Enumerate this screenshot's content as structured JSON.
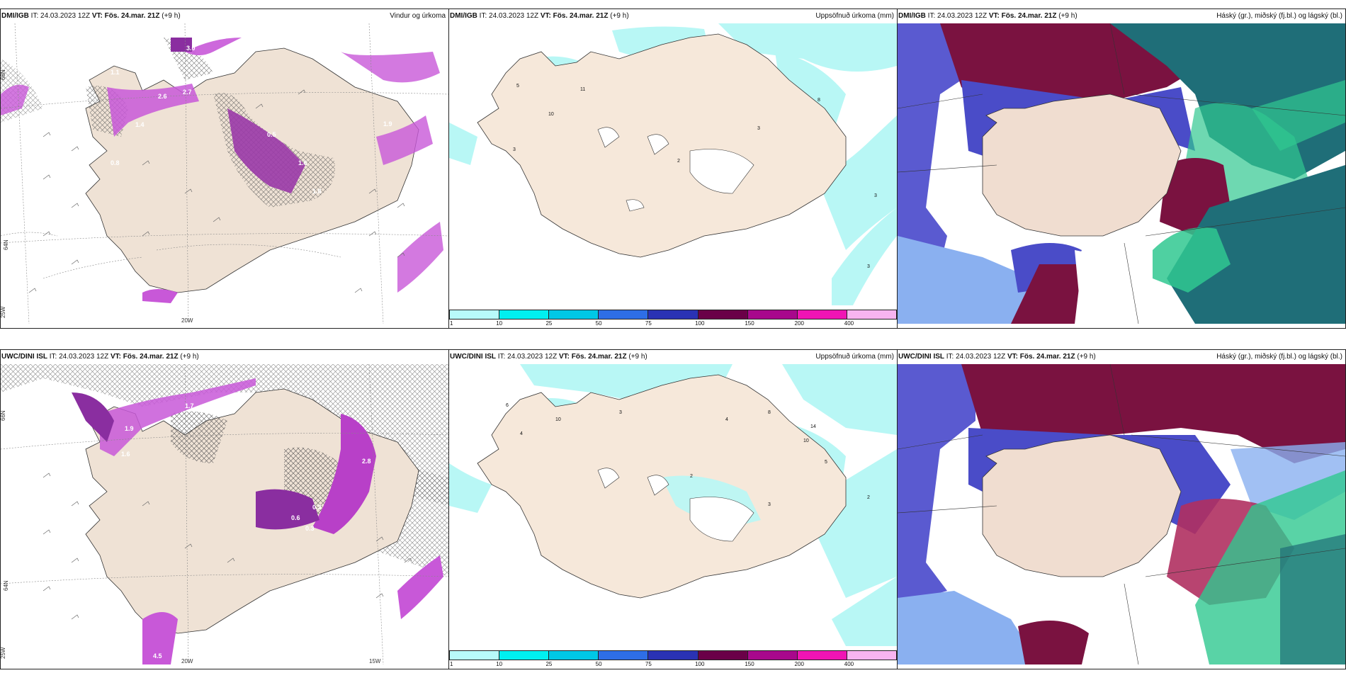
{
  "colors": {
    "land": "#f0e3d6",
    "precip_cyan": "#b8f7f5",
    "precip_magenta": "#c858d8",
    "cloud_high": "#7a1240",
    "cloud_mid": "#4a4cc8",
    "cloud_low": "#1f6e78",
    "cloud_low_green": "#30c890",
    "cloud_light_blue": "#8ab0f0"
  },
  "panels": [
    {
      "id": "p1",
      "model": "DMI/IGB",
      "it_label": "IT:",
      "it": "24.03.2023 12Z",
      "vt_label": "VT:",
      "vt": "Fös. 24.mar. 21Z",
      "lead": "(+9 h)",
      "title": "Vindur og úrkoma"
    },
    {
      "id": "p2",
      "model": "DMI/IGB",
      "it_label": "IT:",
      "it": "24.03.2023 12Z",
      "vt_label": "VT:",
      "vt": "Fös. 24.mar. 21Z",
      "lead": "(+9 h)",
      "title": "Uppsöfnuð úrkoma (mm)"
    },
    {
      "id": "p3",
      "model": "DMI/IGB",
      "it_label": "IT:",
      "it": "24.03.2023 12Z",
      "vt_label": "VT:",
      "vt": "Fös. 24.mar. 21Z",
      "lead": "(+9 h)",
      "title": "Háský (gr.), miðský (fj.bl.) og lágský (bl.)"
    },
    {
      "id": "p4",
      "model": "UWC/DINI ISL",
      "it_label": "IT:",
      "it": "24.03.2023 12Z",
      "vt_label": "VT:",
      "vt": "Fös. 24.mar. 21Z",
      "lead": "(+9 h)",
      "title": ""
    },
    {
      "id": "p5",
      "model": "UWC/DINI ISL",
      "it_label": "IT:",
      "it": "24.03.2023 12Z",
      "vt_label": "VT:",
      "vt": "Fös. 24.mar. 21Z",
      "lead": "(+9 h)",
      "title": "Uppsöfnuð úrkoma (mm)"
    },
    {
      "id": "p6",
      "model": "UWC/DINI ISL",
      "it_label": "IT:",
      "it": "24.03.2023 12Z",
      "vt_label": "VT:",
      "vt": "Fös. 24.mar. 21Z",
      "lead": "(+9 h)",
      "title": "Háský (gr.), miðský (fj.bl.) og lágský (bl.)"
    }
  ],
  "axis_labels": {
    "lon20": "20W",
    "lon15": "15W",
    "lon25": "25W",
    "lat66": "66N",
    "lat64": "64N"
  },
  "colorbar": {
    "colors": [
      "#b8fafa",
      "#00f0f0",
      "#00c8e6",
      "#2e6ee6",
      "#2a32b4",
      "#6a0048",
      "#a8088c",
      "#f014b4",
      "#f8b4f0"
    ],
    "ticks": [
      "1",
      "10",
      "25",
      "50",
      "75",
      "100",
      "150",
      "200",
      "400"
    ]
  },
  "precip_values_p1": [
    "3.0",
    "1.1",
    "2.6",
    "2.7",
    "1.9",
    "0.5",
    "0.8",
    "1.4",
    "1.6",
    "1.8"
  ],
  "precip_values_p4": [
    "1.9",
    "1.7",
    "1.6",
    "2.8",
    "0.3",
    "0.6",
    "0.3",
    "4.5"
  ],
  "accum_values_p2": [
    "11",
    "5",
    "10",
    "8",
    "3",
    "2",
    "3",
    "3",
    "3"
  ],
  "accum_values_p5": [
    "10",
    "6",
    "4",
    "3",
    "8",
    "4",
    "14",
    "10",
    "5",
    "2",
    "2",
    "3"
  ]
}
